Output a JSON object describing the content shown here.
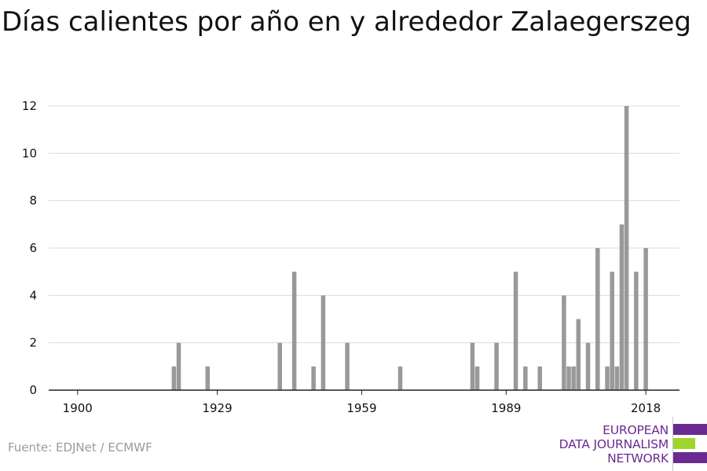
{
  "title": "Días calientes por año en y alrededor Zalaegerszeg",
  "source": "Fuente: EDJNet / ECMWF",
  "logo": {
    "lines": [
      "EUROPEAN",
      "DATA JOURNALISM",
      "NETWORK"
    ],
    "colors": [
      "#6a2a92",
      "#a0d52d",
      "#6a2a92"
    ]
  },
  "colors": {
    "bar": "#999999",
    "grid": "#dcdcdc",
    "axis": "#222222"
  },
  "chart_data": {
    "type": "bar",
    "title": "Días calientes por año en y alrededor Zalaegerszeg",
    "xlabel": "",
    "ylabel": "",
    "xlim": [
      1894,
      2025
    ],
    "ylim": [
      0,
      12
    ],
    "xticks": [
      1900,
      1929,
      1959,
      1989,
      2018
    ],
    "yticks": [
      0,
      2,
      4,
      6,
      8,
      10,
      12
    ],
    "grid": true,
    "x": [
      1920,
      1921,
      1927,
      1942,
      1945,
      1949,
      1951,
      1956,
      1967,
      1982,
      1983,
      1987,
      1991,
      1993,
      1996,
      2001,
      2002,
      2003,
      2004,
      2006,
      2008,
      2010,
      2011,
      2012,
      2013,
      2014,
      2016,
      2018
    ],
    "values": [
      1,
      2,
      1,
      2,
      5,
      1,
      4,
      2,
      1,
      2,
      1,
      2,
      5,
      1,
      1,
      4,
      1,
      1,
      3,
      2,
      6,
      1,
      5,
      1,
      7,
      12,
      5,
      6
    ]
  }
}
